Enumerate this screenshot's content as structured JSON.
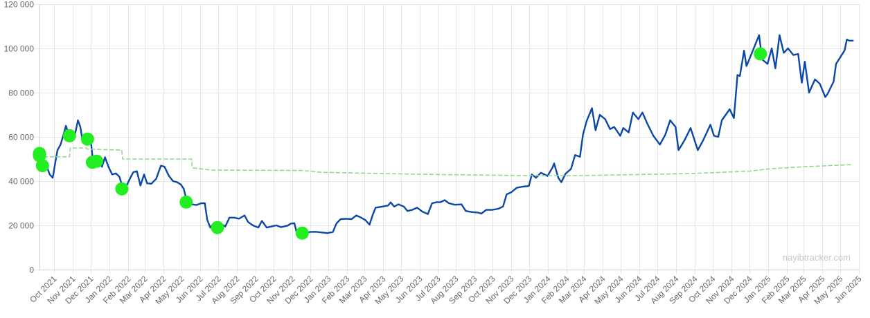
{
  "chart_data": {
    "type": "line",
    "title": "",
    "xlabel": "",
    "ylabel": "",
    "watermark": "nayibtracker.com",
    "ylim": [
      0,
      120000
    ],
    "y_ticks": [
      "0",
      "20 000",
      "40 000",
      "60 000",
      "80 000",
      "100 000",
      "120 000"
    ],
    "y_tick_values": [
      0,
      20000,
      40000,
      60000,
      80000,
      100000,
      120000
    ],
    "xlim": [
      "2021-09-07",
      "2025-06-01"
    ],
    "x_ticks": [
      "Oct 2021",
      "Nov 2021",
      "Dec 2021",
      "Jan 2022",
      "Feb 2022",
      "Mar 2022",
      "Apr 2022",
      "May 2022",
      "Jun 2022",
      "Jul 2022",
      "Aug 2022",
      "Sep 2022",
      "Oct 2022",
      "Nov 2022",
      "Dec 2022",
      "Jan 2023",
      "Feb 2023",
      "Mar 2023",
      "Apr 2023",
      "May 2023",
      "Jun 2023",
      "Jul 2023",
      "Aug 2023",
      "Sep 2023",
      "Oct 2023",
      "Nov 2023",
      "Dec 2023",
      "Jan 2024",
      "Feb 2024",
      "Mar 2024",
      "Apr 2024",
      "May 2024",
      "Jun 2024",
      "Jul 2024",
      "Aug 2024",
      "Sep 2024",
      "Oct 2024",
      "Nov 2024",
      "Dec 2024",
      "Jan 2025",
      "Feb 2025",
      "Mar 2025",
      "Apr 2025",
      "May 2025",
      "Jun 2025"
    ],
    "x_tick_dates": [
      "2021-10-01",
      "2021-11-01",
      "2021-12-01",
      "2022-01-01",
      "2022-02-01",
      "2022-03-01",
      "2022-04-01",
      "2022-05-01",
      "2022-06-01",
      "2022-07-01",
      "2022-08-01",
      "2022-09-01",
      "2022-10-01",
      "2022-11-01",
      "2022-12-01",
      "2023-01-01",
      "2023-02-01",
      "2023-03-01",
      "2023-04-01",
      "2023-05-01",
      "2023-06-01",
      "2023-07-01",
      "2023-08-01",
      "2023-09-01",
      "2023-10-01",
      "2023-11-01",
      "2023-12-01",
      "2024-01-01",
      "2024-02-01",
      "2024-03-01",
      "2024-04-01",
      "2024-05-01",
      "2024-06-01",
      "2024-07-01",
      "2024-08-01",
      "2024-09-01",
      "2024-10-01",
      "2024-11-01",
      "2024-12-01",
      "2025-01-01",
      "2025-02-01",
      "2025-03-01",
      "2025-04-01",
      "2025-05-01",
      "2025-06-01"
    ],
    "grid": true,
    "colors": {
      "price": "#0b47a6",
      "avg_cost": "#8fd98f",
      "purchase": "#22ee22",
      "grid": "#e6e6e6"
    },
    "series": [
      {
        "style": "solid",
        "points": [
          [
            "2021-09-07",
            52000
          ],
          [
            "2021-09-12",
            46500
          ],
          [
            "2021-09-18",
            47500
          ],
          [
            "2021-09-24",
            43000
          ],
          [
            "2021-09-29",
            41500
          ],
          [
            "2021-10-03",
            48000
          ],
          [
            "2021-10-07",
            54000
          ],
          [
            "2021-10-12",
            56500
          ],
          [
            "2021-10-17",
            61000
          ],
          [
            "2021-10-21",
            65000
          ],
          [
            "2021-10-26",
            60500
          ],
          [
            "2021-10-31",
            61500
          ],
          [
            "2021-11-05",
            61000
          ],
          [
            "2021-11-10",
            67500
          ],
          [
            "2021-11-14",
            64500
          ],
          [
            "2021-11-18",
            57500
          ],
          [
            "2021-11-23",
            56500
          ],
          [
            "2021-11-28",
            57500
          ],
          [
            "2021-12-02",
            57000
          ],
          [
            "2021-12-05",
            49000
          ],
          [
            "2021-12-10",
            48500
          ],
          [
            "2021-12-15",
            48500
          ],
          [
            "2021-12-20",
            46500
          ],
          [
            "2021-12-25",
            50800
          ],
          [
            "2021-12-31",
            46300
          ],
          [
            "2022-01-06",
            43000
          ],
          [
            "2022-01-12",
            43500
          ],
          [
            "2022-01-18",
            42000
          ],
          [
            "2022-01-24",
            36500
          ],
          [
            "2022-01-30",
            38000
          ],
          [
            "2022-02-05",
            41500
          ],
          [
            "2022-02-10",
            44000
          ],
          [
            "2022-02-16",
            44500
          ],
          [
            "2022-02-22",
            38000
          ],
          [
            "2022-02-28",
            43000
          ],
          [
            "2022-03-05",
            39000
          ],
          [
            "2022-03-12",
            38800
          ],
          [
            "2022-03-20",
            41000
          ],
          [
            "2022-03-28",
            47000
          ],
          [
            "2022-04-03",
            46500
          ],
          [
            "2022-04-10",
            42500
          ],
          [
            "2022-04-17",
            40000
          ],
          [
            "2022-04-24",
            39500
          ],
          [
            "2022-04-30",
            38500
          ],
          [
            "2022-05-05",
            36500
          ],
          [
            "2022-05-10",
            31000
          ],
          [
            "2022-05-18",
            29500
          ],
          [
            "2022-05-26",
            29200
          ],
          [
            "2022-06-03",
            30000
          ],
          [
            "2022-06-09",
            30000
          ],
          [
            "2022-06-13",
            22500
          ],
          [
            "2022-06-18",
            19000
          ],
          [
            "2022-06-24",
            21000
          ],
          [
            "2022-06-30",
            19300
          ],
          [
            "2022-07-07",
            20500
          ],
          [
            "2022-07-13",
            19500
          ],
          [
            "2022-07-20",
            23500
          ],
          [
            "2022-07-28",
            23500
          ],
          [
            "2022-08-05",
            23000
          ],
          [
            "2022-08-14",
            24500
          ],
          [
            "2022-08-20",
            21500
          ],
          [
            "2022-08-28",
            20000
          ],
          [
            "2022-09-06",
            19000
          ],
          [
            "2022-09-12",
            22000
          ],
          [
            "2022-09-20",
            19000
          ],
          [
            "2022-09-28",
            19500
          ],
          [
            "2022-10-06",
            20000
          ],
          [
            "2022-10-14",
            19200
          ],
          [
            "2022-10-25",
            19900
          ],
          [
            "2022-10-30",
            20800
          ],
          [
            "2022-11-05",
            21000
          ],
          [
            "2022-11-09",
            16500
          ],
          [
            "2022-11-16",
            16500
          ],
          [
            "2022-11-22",
            15800
          ],
          [
            "2022-11-30",
            17000
          ],
          [
            "2022-12-10",
            17100
          ],
          [
            "2022-12-20",
            16800
          ],
          [
            "2022-12-30",
            16500
          ],
          [
            "2023-01-08",
            17000
          ],
          [
            "2023-01-14",
            20900
          ],
          [
            "2023-01-21",
            22800
          ],
          [
            "2023-01-30",
            23000
          ],
          [
            "2023-02-08",
            22800
          ],
          [
            "2023-02-16",
            24500
          ],
          [
            "2023-02-24",
            23500
          ],
          [
            "2023-03-03",
            22400
          ],
          [
            "2023-03-10",
            20300
          ],
          [
            "2023-03-15",
            24500
          ],
          [
            "2023-03-20",
            28000
          ],
          [
            "2023-03-30",
            28400
          ],
          [
            "2023-04-10",
            29000
          ],
          [
            "2023-04-14",
            30400
          ],
          [
            "2023-04-20",
            28500
          ],
          [
            "2023-04-27",
            29500
          ],
          [
            "2023-05-06",
            28500
          ],
          [
            "2023-05-12",
            26500
          ],
          [
            "2023-05-20",
            27000
          ],
          [
            "2023-05-28",
            28000
          ],
          [
            "2023-06-06",
            26200
          ],
          [
            "2023-06-15",
            25100
          ],
          [
            "2023-06-22",
            30000
          ],
          [
            "2023-06-30",
            30500
          ],
          [
            "2023-07-06",
            30500
          ],
          [
            "2023-07-13",
            31400
          ],
          [
            "2023-07-20",
            30000
          ],
          [
            "2023-07-30",
            29300
          ],
          [
            "2023-08-10",
            29500
          ],
          [
            "2023-08-17",
            26500
          ],
          [
            "2023-08-28",
            26000
          ],
          [
            "2023-09-06",
            25800
          ],
          [
            "2023-09-12",
            25300
          ],
          [
            "2023-09-20",
            27000
          ],
          [
            "2023-09-30",
            27000
          ],
          [
            "2023-10-10",
            27500
          ],
          [
            "2023-10-18",
            28500
          ],
          [
            "2023-10-24",
            34000
          ],
          [
            "2023-11-01",
            35000
          ],
          [
            "2023-11-10",
            37000
          ],
          [
            "2023-11-20",
            37500
          ],
          [
            "2023-11-30",
            37800
          ],
          [
            "2023-12-05",
            43000
          ],
          [
            "2023-12-12",
            41500
          ],
          [
            "2023-12-20",
            43800
          ],
          [
            "2023-12-31",
            42300
          ],
          [
            "2024-01-08",
            46000
          ],
          [
            "2024-01-11",
            48000
          ],
          [
            "2024-01-18",
            41500
          ],
          [
            "2024-01-23",
            39500
          ],
          [
            "2024-01-30",
            43300
          ],
          [
            "2024-02-08",
            45500
          ],
          [
            "2024-02-15",
            51800
          ],
          [
            "2024-02-23",
            51000
          ],
          [
            "2024-02-28",
            61000
          ],
          [
            "2024-03-05",
            67000
          ],
          [
            "2024-03-11",
            71000
          ],
          [
            "2024-03-14",
            73000
          ],
          [
            "2024-03-20",
            63000
          ],
          [
            "2024-03-27",
            70000
          ],
          [
            "2024-04-05",
            68000
          ],
          [
            "2024-04-13",
            63500
          ],
          [
            "2024-04-20",
            64500
          ],
          [
            "2024-04-30",
            60500
          ],
          [
            "2024-05-05",
            64000
          ],
          [
            "2024-05-14",
            62000
          ],
          [
            "2024-05-21",
            71000
          ],
          [
            "2024-05-30",
            68000
          ],
          [
            "2024-06-06",
            71000
          ],
          [
            "2024-06-14",
            66000
          ],
          [
            "2024-06-24",
            60500
          ],
          [
            "2024-07-05",
            56500
          ],
          [
            "2024-07-14",
            61000
          ],
          [
            "2024-07-22",
            67500
          ],
          [
            "2024-07-31",
            64500
          ],
          [
            "2024-08-05",
            54000
          ],
          [
            "2024-08-15",
            58500
          ],
          [
            "2024-08-25",
            64000
          ],
          [
            "2024-09-06",
            54000
          ],
          [
            "2024-09-15",
            58500
          ],
          [
            "2024-09-27",
            65500
          ],
          [
            "2024-10-03",
            60500
          ],
          [
            "2024-10-10",
            60000
          ],
          [
            "2024-10-16",
            67500
          ],
          [
            "2024-10-29",
            72500
          ],
          [
            "2024-11-05",
            68500
          ],
          [
            "2024-11-11",
            88000
          ],
          [
            "2024-11-15",
            87500
          ],
          [
            "2024-11-22",
            99000
          ],
          [
            "2024-11-26",
            92000
          ],
          [
            "2024-12-05",
            98000
          ],
          [
            "2024-12-17",
            106000
          ],
          [
            "2024-12-22",
            95000
          ],
          [
            "2024-12-31",
            93000
          ],
          [
            "2025-01-07",
            100000
          ],
          [
            "2025-01-13",
            91000
          ],
          [
            "2025-01-20",
            106000
          ],
          [
            "2025-01-27",
            98000
          ],
          [
            "2025-02-03",
            100000
          ],
          [
            "2025-02-12",
            97000
          ],
          [
            "2025-02-20",
            97500
          ],
          [
            "2025-02-26",
            84500
          ],
          [
            "2025-03-03",
            94000
          ],
          [
            "2025-03-10",
            80000
          ],
          [
            "2025-03-20",
            86000
          ],
          [
            "2025-03-28",
            84000
          ],
          [
            "2025-04-06",
            78000
          ],
          [
            "2025-04-10",
            79500
          ],
          [
            "2025-04-20",
            85000
          ],
          [
            "2025-04-24",
            93000
          ],
          [
            "2025-05-01",
            96000
          ],
          [
            "2025-05-08",
            99000
          ],
          [
            "2025-05-12",
            104000
          ],
          [
            "2025-05-16",
            103500
          ],
          [
            "2025-05-22",
            103500
          ]
        ]
      },
      {
        "style": "dashed",
        "points": [
          [
            "2021-09-07",
            52000
          ],
          [
            "2021-09-08",
            51000
          ],
          [
            "2021-10-27",
            51000
          ],
          [
            "2021-10-28",
            55000
          ],
          [
            "2021-11-24",
            55000
          ],
          [
            "2021-11-25",
            54500
          ],
          [
            "2022-01-22",
            54000
          ],
          [
            "2022-01-23",
            50000
          ],
          [
            "2022-05-18",
            50000
          ],
          [
            "2022-05-19",
            46000
          ],
          [
            "2022-06-20",
            45000
          ],
          [
            "2022-11-18",
            44800
          ],
          [
            "2022-12-20",
            44000
          ],
          [
            "2023-03-15",
            43500
          ],
          [
            "2023-07-01",
            43000
          ],
          [
            "2023-11-20",
            42500
          ],
          [
            "2024-02-28",
            42500
          ],
          [
            "2024-06-01",
            43000
          ],
          [
            "2024-09-01",
            43500
          ],
          [
            "2024-12-01",
            44500
          ],
          [
            "2025-01-01",
            45500
          ],
          [
            "2025-03-01",
            46500
          ],
          [
            "2025-05-22",
            47500
          ]
        ]
      }
    ],
    "purchases": [
      [
        "2021-09-07",
        52500
      ],
      [
        "2021-09-07",
        51500
      ],
      [
        "2021-09-12",
        47000
      ],
      [
        "2021-10-27",
        60500
      ],
      [
        "2021-11-26",
        59000
      ],
      [
        "2021-12-04",
        48500
      ],
      [
        "2021-12-11",
        49000
      ],
      [
        "2022-01-22",
        36500
      ],
      [
        "2022-05-09",
        30500
      ],
      [
        "2022-06-30",
        19000
      ],
      [
        "2022-11-18",
        16500
      ],
      [
        "2024-12-19",
        97500
      ]
    ]
  }
}
